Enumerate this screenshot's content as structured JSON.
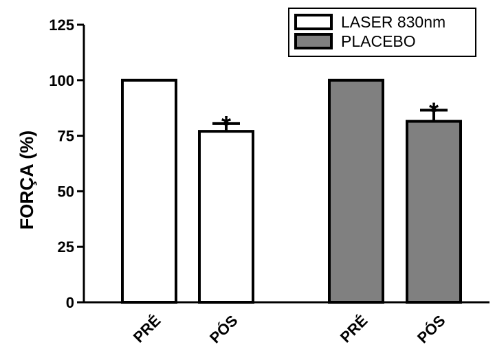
{
  "chart_data": {
    "type": "bar",
    "title": "",
    "xlabel": "",
    "ylabel": "FORÇA (%)",
    "ylim": [
      0,
      125
    ],
    "yticks": [
      0,
      25,
      50,
      75,
      100,
      125
    ],
    "categories": [
      "PRÉ",
      "PÓS",
      "PRÉ",
      "PÓS"
    ],
    "groups": [
      {
        "name": "LASER 830nm",
        "color": "#ffffff",
        "bars": [
          {
            "category": "PRÉ",
            "value": 100,
            "error": 0,
            "marker": ""
          },
          {
            "category": "PÓS",
            "value": 77,
            "error": 3.5,
            "marker": "*"
          }
        ]
      },
      {
        "name": "PLACEBO",
        "color": "#808080",
        "bars": [
          {
            "category": "PRÉ",
            "value": 100,
            "error": 0,
            "marker": ""
          },
          {
            "category": "PÓS",
            "value": 81.5,
            "error": 5,
            "marker": "*"
          }
        ]
      }
    ],
    "legend_position": "top-right",
    "grid": false
  }
}
